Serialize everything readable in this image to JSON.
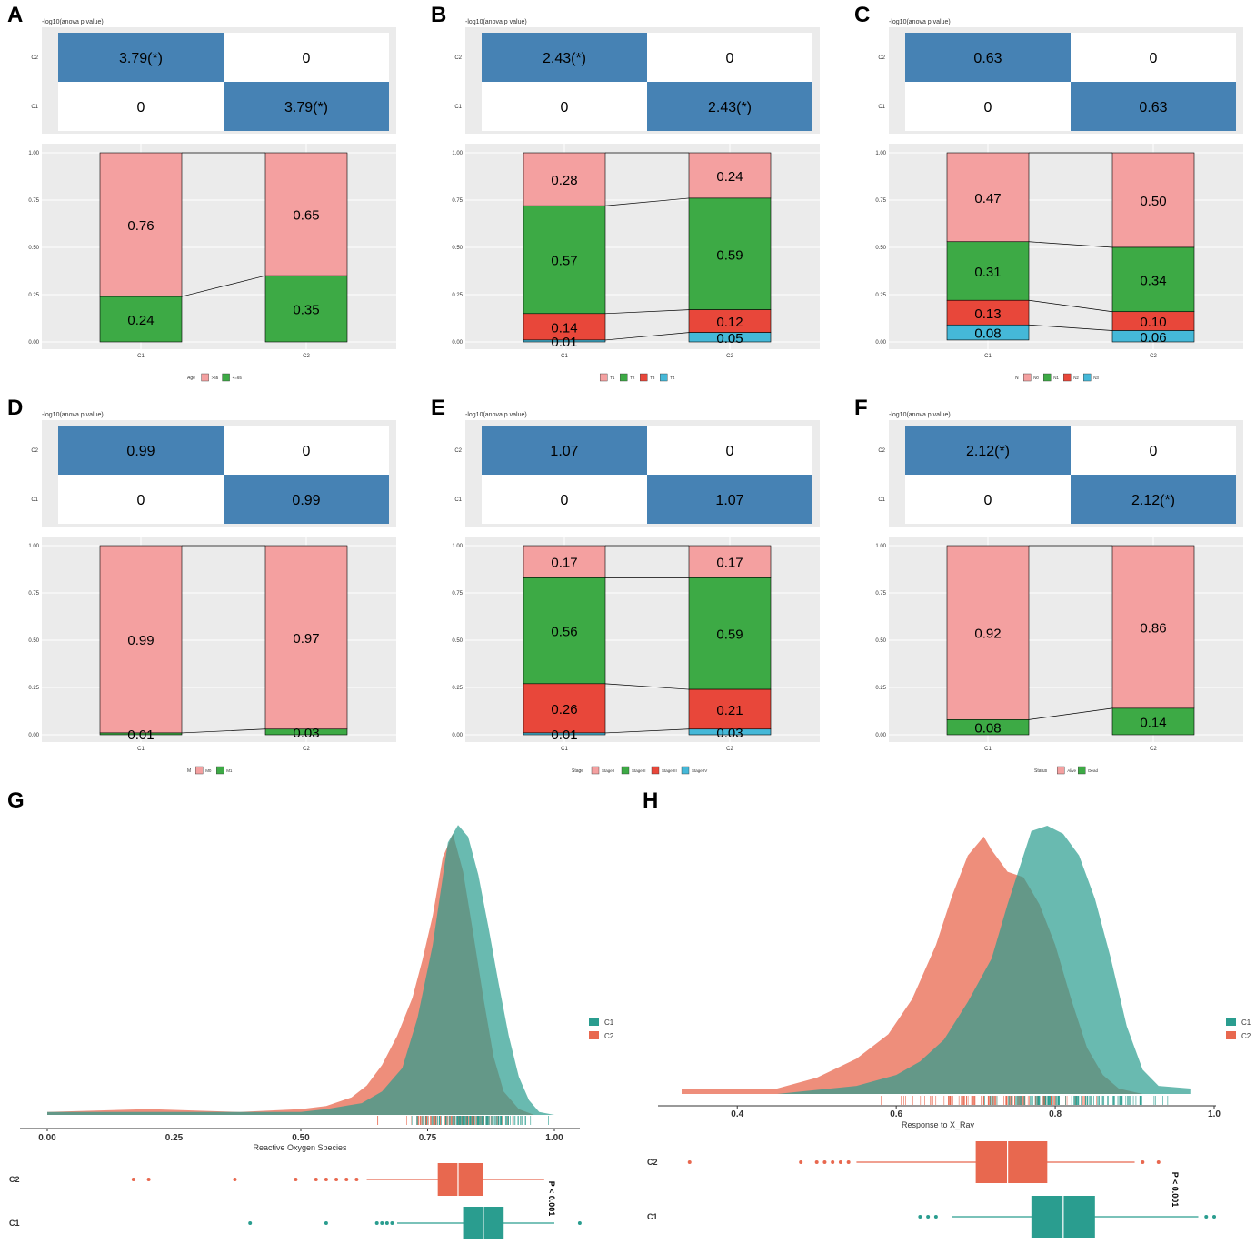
{
  "figure_labels": [
    "A",
    "B",
    "C",
    "D",
    "E",
    "F",
    "G",
    "H"
  ],
  "colors": {
    "panel_bg": "#ebebeb",
    "heat_fill": "#4682b4",
    "seg": [
      "#f4a0a0",
      "#3daa45",
      "#e8473a",
      "#45b8d8"
    ],
    "c1_density": "#2a9d8f",
    "c2_density": "#e8684f",
    "c1_box": "#2a9d8f",
    "c2_box": "#e8684f"
  },
  "chart_data": [
    {
      "type": "bar",
      "panel": "A",
      "heatmap_title": "-log10(anova p value)",
      "heatmap_rows": [
        "C2",
        "C1"
      ],
      "heatmap_cells": [
        [
          "3.79(*)",
          "0"
        ],
        [
          "0",
          "3.79(*)"
        ]
      ],
      "categories": [
        "C1",
        "C2"
      ],
      "ylim": [
        0,
        1
      ],
      "yticks": [
        "0.00",
        "0.25",
        "0.50",
        "0.75",
        "1.00"
      ],
      "legend_title": "Age",
      "series": [
        {
          "name": ">65",
          "values": [
            0.76,
            0.65
          ],
          "labels": [
            "0.76",
            "0.65"
          ]
        },
        {
          "name": "<=65",
          "values": [
            0.24,
            0.35
          ],
          "labels": [
            "0.24",
            "0.35"
          ]
        }
      ]
    },
    {
      "type": "bar",
      "panel": "B",
      "heatmap_title": "-log10(anova p value)",
      "heatmap_rows": [
        "C2",
        "C1"
      ],
      "heatmap_cells": [
        [
          "2.43(*)",
          "0"
        ],
        [
          "0",
          "2.43(*)"
        ]
      ],
      "categories": [
        "C1",
        "C2"
      ],
      "ylim": [
        0,
        1
      ],
      "yticks": [
        "0.00",
        "0.25",
        "0.50",
        "0.75",
        "1.00"
      ],
      "legend_title": "T",
      "series": [
        {
          "name": "T1",
          "values": [
            0.28,
            0.24
          ],
          "labels": [
            "0.28",
            "0.24"
          ]
        },
        {
          "name": "T2",
          "values": [
            0.57,
            0.59
          ],
          "labels": [
            "0.57",
            "0.59"
          ]
        },
        {
          "name": "T3",
          "values": [
            0.14,
            0.12
          ],
          "labels": [
            "0.14",
            "0.12"
          ]
        },
        {
          "name": "T4",
          "values": [
            0.01,
            0.05
          ],
          "labels": [
            "0.01",
            "0.05"
          ]
        }
      ]
    },
    {
      "type": "bar",
      "panel": "C",
      "heatmap_title": "-log10(anova p value)",
      "heatmap_rows": [
        "C2",
        "C1"
      ],
      "heatmap_cells": [
        [
          "0.63",
          "0"
        ],
        [
          "0",
          "0.63"
        ]
      ],
      "categories": [
        "C1",
        "C2"
      ],
      "ylim": [
        0,
        1
      ],
      "yticks": [
        "0.00",
        "0.25",
        "0.50",
        "0.75",
        "1.00"
      ],
      "legend_title": "N",
      "series": [
        {
          "name": "N0",
          "values": [
            0.47,
            0.5
          ],
          "labels": [
            "0.47",
            "0.50"
          ]
        },
        {
          "name": "N1",
          "values": [
            0.31,
            0.34
          ],
          "labels": [
            "0.31",
            "0.34"
          ]
        },
        {
          "name": "N2",
          "values": [
            0.13,
            0.1
          ],
          "labels": [
            "0.13",
            "0.10"
          ]
        },
        {
          "name": "N3",
          "values": [
            0.08,
            0.06
          ],
          "labels": [
            "0.08",
            "0.06"
          ]
        }
      ]
    },
    {
      "type": "bar",
      "panel": "D",
      "heatmap_title": "-log10(anova p value)",
      "heatmap_rows": [
        "C2",
        "C1"
      ],
      "heatmap_cells": [
        [
          "0.99",
          "0"
        ],
        [
          "0",
          "0.99"
        ]
      ],
      "categories": [
        "C1",
        "C2"
      ],
      "ylim": [
        0,
        1
      ],
      "yticks": [
        "0.00",
        "0.25",
        "0.50",
        "0.75",
        "1.00"
      ],
      "legend_title": "M",
      "series": [
        {
          "name": "M0",
          "values": [
            0.99,
            0.97
          ],
          "labels": [
            "0.99",
            "0.97"
          ]
        },
        {
          "name": "M1",
          "values": [
            0.01,
            0.03
          ],
          "labels": [
            "0.01",
            "0.03"
          ]
        }
      ]
    },
    {
      "type": "bar",
      "panel": "E",
      "heatmap_title": "-log10(anova p value)",
      "heatmap_rows": [
        "C2",
        "C1"
      ],
      "heatmap_cells": [
        [
          "1.07",
          "0"
        ],
        [
          "0",
          "1.07"
        ]
      ],
      "categories": [
        "C1",
        "C2"
      ],
      "ylim": [
        0,
        1
      ],
      "yticks": [
        "0.00",
        "0.25",
        "0.50",
        "0.75",
        "1.00"
      ],
      "legend_title": "Stage",
      "series": [
        {
          "name": "Stage I",
          "values": [
            0.17,
            0.17
          ],
          "labels": [
            "0.17",
            "0.17"
          ]
        },
        {
          "name": "Stage II",
          "values": [
            0.56,
            0.59
          ],
          "labels": [
            "0.56",
            "0.59"
          ]
        },
        {
          "name": "Stage III",
          "values": [
            0.26,
            0.21
          ],
          "labels": [
            "0.26",
            "0.21"
          ]
        },
        {
          "name": "Stage IV",
          "values": [
            0.01,
            0.03
          ],
          "labels": [
            "0.01",
            "0.03"
          ]
        }
      ]
    },
    {
      "type": "bar",
      "panel": "F",
      "heatmap_title": "-log10(anova p value)",
      "heatmap_rows": [
        "C2",
        "C1"
      ],
      "heatmap_cells": [
        [
          "2.12(*)",
          "0"
        ],
        [
          "0",
          "2.12(*)"
        ]
      ],
      "categories": [
        "C1",
        "C2"
      ],
      "ylim": [
        0,
        1
      ],
      "yticks": [
        "0.00",
        "0.25",
        "0.50",
        "0.75",
        "1.00"
      ],
      "legend_title": "Status",
      "series": [
        {
          "name": "Alive",
          "values": [
            0.92,
            0.86
          ],
          "labels": [
            "0.92",
            "0.86"
          ]
        },
        {
          "name": "Dead",
          "values": [
            0.08,
            0.14
          ],
          "labels": [
            "0.08",
            "0.14"
          ]
        }
      ]
    },
    {
      "type": "area",
      "panel": "G",
      "xlabel": "Reactive Oxygen Species",
      "xlim": [
        0.0,
        1.0
      ],
      "xticks": [
        0.0,
        0.25,
        0.5,
        0.75,
        1.0
      ],
      "xtick_labels": [
        "0.00",
        "0.25",
        "0.50",
        "0.75",
        "1.00"
      ],
      "legend": [
        "C1",
        "C2"
      ],
      "pvalue": "P < 0.001",
      "density": {
        "C1": {
          "x": [
            0.0,
            0.2,
            0.35,
            0.5,
            0.55,
            0.62,
            0.66,
            0.7,
            0.73,
            0.76,
            0.79,
            0.81,
            0.83,
            0.85,
            0.87,
            0.89,
            0.91,
            0.93,
            0.95,
            0.97,
            1.0
          ],
          "y": [
            0.01,
            0.01,
            0.01,
            0.01,
            0.02,
            0.04,
            0.08,
            0.16,
            0.33,
            0.58,
            0.93,
            0.99,
            0.95,
            0.82,
            0.64,
            0.45,
            0.27,
            0.13,
            0.05,
            0.01,
            0.0
          ]
        },
        "C2": {
          "x": [
            0.0,
            0.2,
            0.38,
            0.5,
            0.55,
            0.6,
            0.63,
            0.66,
            0.69,
            0.72,
            0.74,
            0.76,
            0.78,
            0.8,
            0.82,
            0.84,
            0.86,
            0.88,
            0.9,
            0.93,
            0.96,
            1.0
          ],
          "y": [
            0.01,
            0.02,
            0.01,
            0.02,
            0.03,
            0.06,
            0.1,
            0.17,
            0.27,
            0.4,
            0.53,
            0.68,
            0.88,
            0.96,
            0.83,
            0.62,
            0.4,
            0.2,
            0.08,
            0.02,
            0.0,
            0.0
          ]
        }
      },
      "boxplot": {
        "C2": {
          "q1": 0.77,
          "median": 0.81,
          "q3": 0.86,
          "whisker_low": 0.63,
          "whisker_high": 0.98,
          "outliers": [
            0.17,
            0.2,
            0.37,
            0.49,
            0.53,
            0.55,
            0.57,
            0.59,
            0.61
          ]
        },
        "C1": {
          "q1": 0.82,
          "median": 0.86,
          "q3": 0.9,
          "whisker_low": 0.69,
          "whisker_high": 1.0,
          "outliers": [
            0.4,
            0.55,
            0.65,
            0.66,
            0.67,
            0.68,
            1.05
          ]
        }
      }
    },
    {
      "type": "area",
      "panel": "H",
      "xlabel": "Response to X_Ray",
      "xlim": [
        0.33,
        1.0
      ],
      "xticks": [
        0.4,
        0.6,
        0.8,
        1.0
      ],
      "xtick_labels": [
        "0.4",
        "0.6",
        "0.8",
        "1.0"
      ],
      "legend": [
        "C1",
        "C2"
      ],
      "pvalue": "P < 0.001",
      "density": {
        "C1": {
          "x": [
            0.33,
            0.45,
            0.55,
            0.6,
            0.63,
            0.66,
            0.69,
            0.72,
            0.74,
            0.76,
            0.77,
            0.79,
            0.81,
            0.83,
            0.85,
            0.87,
            0.89,
            0.91,
            0.93,
            0.97
          ],
          "y": [
            0.0,
            0.0,
            0.03,
            0.07,
            0.12,
            0.2,
            0.34,
            0.5,
            0.7,
            0.88,
            0.97,
            0.99,
            0.96,
            0.88,
            0.72,
            0.5,
            0.25,
            0.09,
            0.03,
            0.02
          ]
        },
        "C2": {
          "x": [
            0.33,
            0.37,
            0.45,
            0.5,
            0.55,
            0.59,
            0.62,
            0.65,
            0.67,
            0.69,
            0.71,
            0.72,
            0.74,
            0.76,
            0.78,
            0.8,
            0.82,
            0.84,
            0.86,
            0.88,
            0.91
          ],
          "y": [
            0.02,
            0.02,
            0.02,
            0.06,
            0.13,
            0.22,
            0.35,
            0.55,
            0.73,
            0.88,
            0.95,
            0.9,
            0.82,
            0.8,
            0.7,
            0.55,
            0.35,
            0.17,
            0.07,
            0.02,
            0.0
          ]
        }
      },
      "boxplot": {
        "C2": {
          "q1": 0.7,
          "median": 0.74,
          "q3": 0.79,
          "whisker_low": 0.55,
          "whisker_high": 0.9,
          "outliers": [
            0.34,
            0.48,
            0.5,
            0.51,
            0.52,
            0.53,
            0.54,
            0.91,
            0.93
          ]
        },
        "C1": {
          "q1": 0.77,
          "median": 0.81,
          "q3": 0.85,
          "whisker_low": 0.67,
          "whisker_high": 0.98,
          "outliers": [
            0.63,
            0.64,
            0.65,
            0.99,
            1.0
          ]
        }
      }
    }
  ]
}
